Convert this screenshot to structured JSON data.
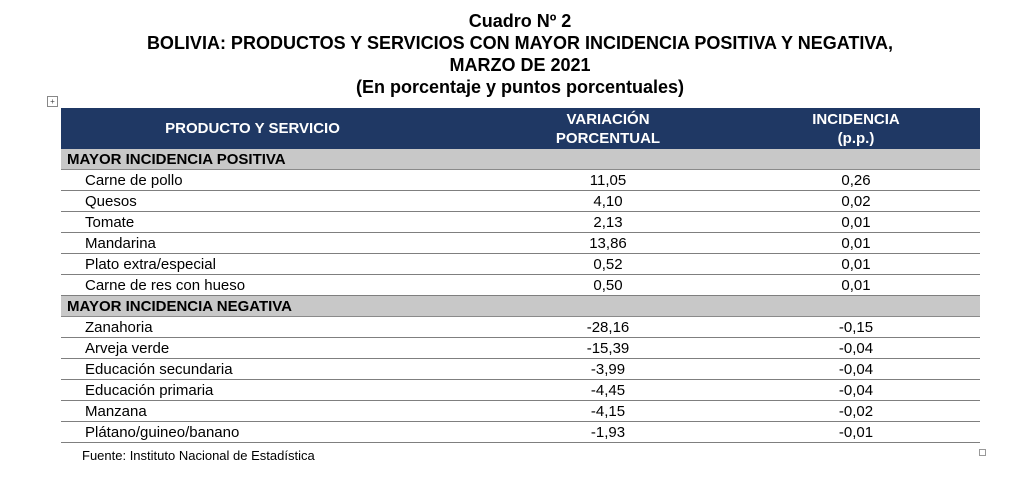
{
  "header": {
    "title": "Cuadro Nº 2",
    "subtitle_line1": "BOLIVIA: PRODUCTOS Y SERVICIOS CON MAYOR INCIDENCIA POSITIVA Y NEGATIVA,",
    "subtitle_line2": "MARZO DE 2021",
    "units": "(En porcentaje y puntos porcentuales)"
  },
  "table": {
    "columns": {
      "product": "PRODUCTO Y SERVICIO",
      "variation_line1": "VARIACIÓN",
      "variation_line2": "PORCENTUAL",
      "incidence_line1": "INCIDENCIA",
      "incidence_line2": "(p.p.)"
    },
    "sections": [
      {
        "label": "MAYOR INCIDENCIA POSITIVA",
        "rows": [
          {
            "name": "Carne de pollo",
            "variation": "11,05",
            "incidence": "0,26"
          },
          {
            "name": "Quesos",
            "variation": "4,10",
            "incidence": "0,02"
          },
          {
            "name": "Tomate",
            "variation": "2,13",
            "incidence": "0,01"
          },
          {
            "name": "Mandarina",
            "variation": "13,86",
            "incidence": "0,01"
          },
          {
            "name": "Plato extra/especial",
            "variation": "0,52",
            "incidence": "0,01"
          },
          {
            "name": "Carne de res con hueso",
            "variation": "0,50",
            "incidence": "0,01"
          }
        ]
      },
      {
        "label": "MAYOR INCIDENCIA NEGATIVA",
        "rows": [
          {
            "name": "Zanahoria",
            "variation": "-28,16",
            "incidence": "-0,15"
          },
          {
            "name": "Arveja verde",
            "variation": "-15,39",
            "incidence": "-0,04"
          },
          {
            "name": "Educación secundaria",
            "variation": "-3,99",
            "incidence": "-0,04"
          },
          {
            "name": "Educación primaria",
            "variation": "-4,45",
            "incidence": "-0,04"
          },
          {
            "name": "Manzana",
            "variation": "-4,15",
            "incidence": "-0,02"
          },
          {
            "name": "Plátano/guineo/banano",
            "variation": "-1,93",
            "incidence": "-0,01"
          }
        ]
      }
    ]
  },
  "footer": {
    "source": "Fuente: Instituto Nacional de Estadística"
  },
  "icons": {
    "table_anchor": "move-handle-icon",
    "resize_handle": "resize-handle-icon"
  },
  "colors": {
    "header_bg": "#1f3864",
    "section_bg": "#c8c8c8"
  }
}
